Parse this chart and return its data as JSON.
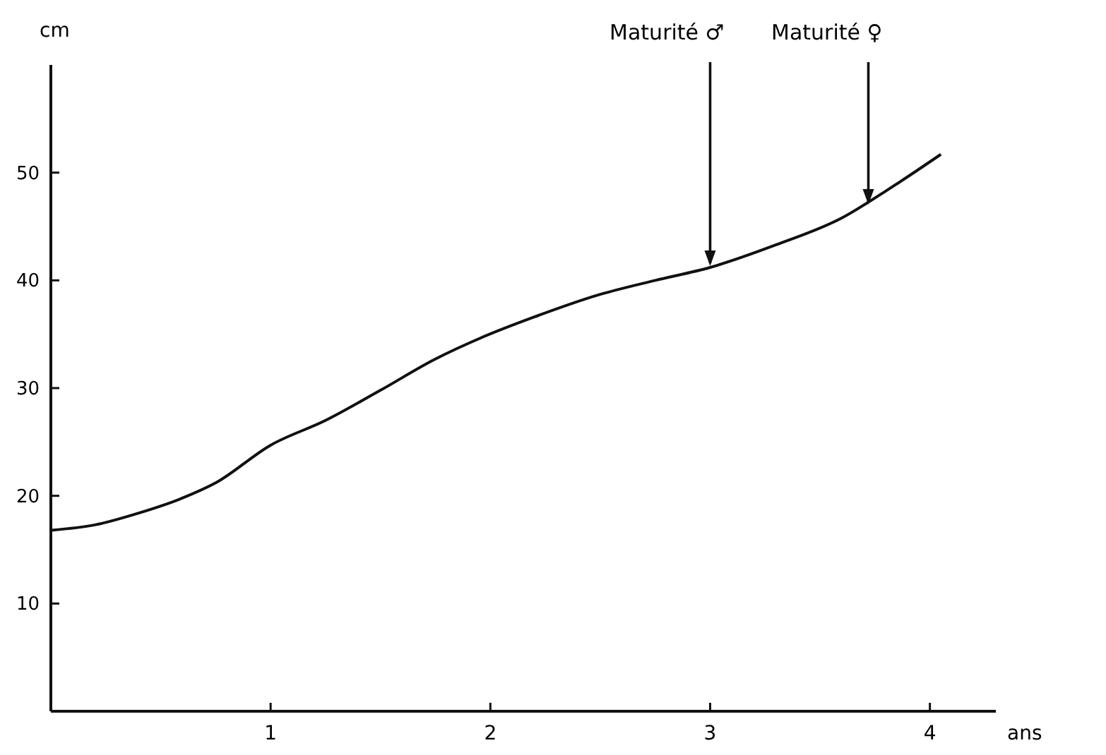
{
  "chart_data": {
    "type": "line",
    "xlabel": "ans",
    "ylabel": "cm",
    "x": [
      0,
      0.2,
      0.4,
      0.6,
      0.75,
      1,
      1.25,
      1.5,
      1.75,
      1.95,
      2.2,
      2.5,
      2.75,
      3,
      3.3,
      3.6,
      3.8,
      4.05
    ],
    "series": [
      {
        "color": "#111111",
        "values": [
          16.8,
          17.3,
          18.4,
          19.8,
          21.2,
          24.7,
          27,
          29.8,
          32.7,
          34.6,
          36.6,
          38.7,
          40,
          41.2,
          43.3,
          45.8,
          48.3,
          51.7
        ]
      }
    ],
    "xlim": [
      0,
      4.3
    ],
    "ylim": [
      0,
      60
    ],
    "xticks": [
      1,
      2,
      3,
      4
    ],
    "yticks": [
      10,
      20,
      30,
      40,
      50
    ],
    "grid": false,
    "marker": "none",
    "line_style": "solid",
    "annotations": [
      {
        "text": "Maturité ♂",
        "x": 3,
        "y": 41.2
      },
      {
        "text": "Maturité ♀",
        "x": 3.72,
        "y": 46.9
      }
    ]
  }
}
